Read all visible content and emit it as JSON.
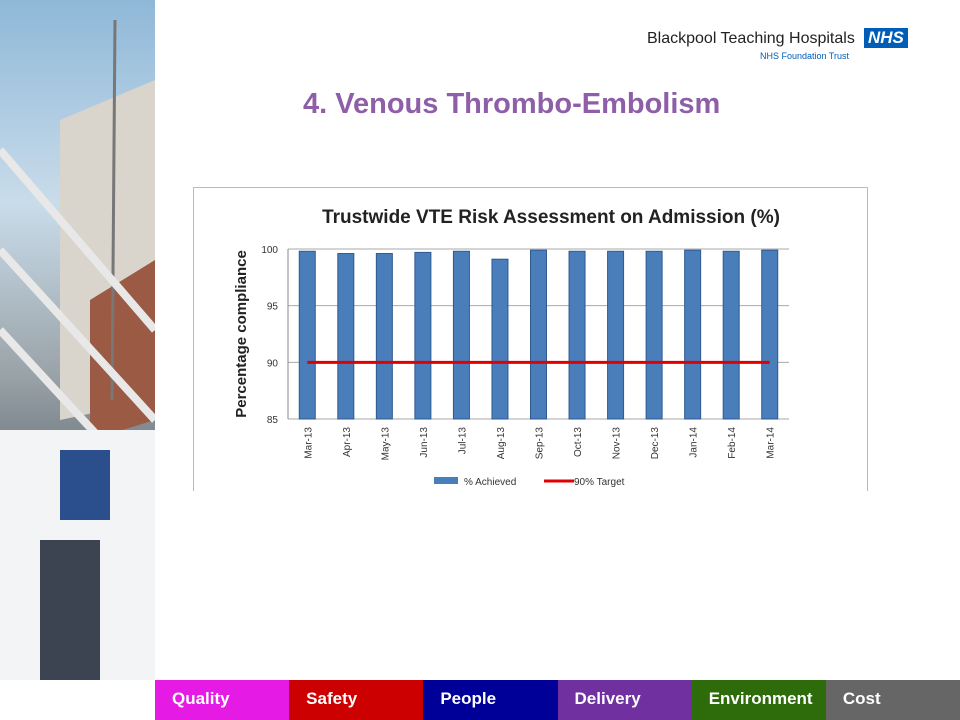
{
  "header": {
    "org": "Blackpool Teaching Hospitals",
    "badge": "NHS",
    "subtitle": "NHS Foundation Trust"
  },
  "slide_title": "4. Venous Thrombo-Embolism",
  "chart_data": {
    "type": "bar",
    "title": "Trustwide VTE Risk Assessment on Admission (%)",
    "ylabel": "Percentage compliance",
    "categories": [
      "Mar-13",
      "Apr-13",
      "May-13",
      "Jun-13",
      "Jul-13",
      "Aug-13",
      "Sep-13",
      "Oct-13",
      "Nov-13",
      "Dec-13",
      "Jan-14",
      "Feb-14",
      "Mar-14"
    ],
    "series": [
      {
        "name": "% Achieved",
        "type": "bar",
        "color": "#4a7ebb",
        "values": [
          99.8,
          99.6,
          99.6,
          99.7,
          99.8,
          99.1,
          99.9,
          99.8,
          99.8,
          99.8,
          99.9,
          99.8,
          99.9
        ]
      },
      {
        "name": "90% Target",
        "type": "line",
        "color": "#e00000",
        "values": [
          90,
          90,
          90,
          90,
          90,
          90,
          90,
          90,
          90,
          90,
          90,
          90,
          90
        ]
      }
    ],
    "ylim": [
      85,
      100
    ],
    "yticks": [
      85,
      90,
      95,
      100
    ],
    "grid": true,
    "legend": "bottom"
  },
  "nav": [
    "Quality",
    "Safety",
    "People",
    "Delivery",
    "Environment",
    "Cost"
  ]
}
